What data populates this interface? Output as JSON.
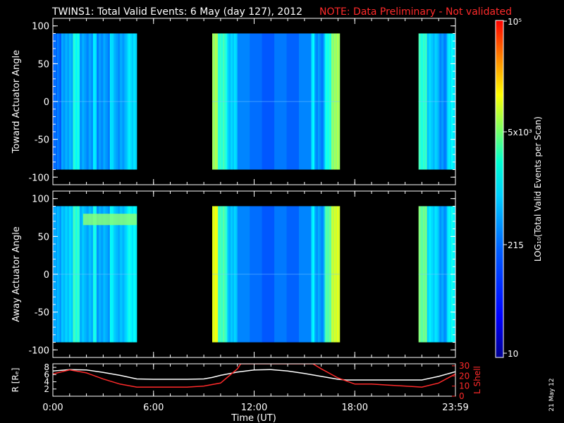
{
  "title": {
    "main": "TWINS1: Total Valid Events:  6 May (day 127), 2012",
    "note": "NOTE: Data Preliminary - Not validated"
  },
  "panels": [
    {
      "ylabel": "Toward Actuator Angle",
      "ylim": [
        -110,
        110
      ],
      "yticks": [
        "100",
        "50",
        "0",
        "-50",
        "-100"
      ]
    },
    {
      "ylabel": "Away Actuator Angle",
      "ylim": [
        -110,
        110
      ],
      "yticks": [
        "100",
        "50",
        "0",
        "-50",
        "-100"
      ]
    }
  ],
  "orbit": {
    "left_label": "R [Rₑ]",
    "left_ticks": [
      "8",
      "6",
      "4",
      "2"
    ],
    "right_label": "L Shell",
    "right_ticks": [
      "30",
      "20",
      "10",
      "0"
    ],
    "r_color": "#ffffff",
    "l_color": "#ff2a2a"
  },
  "xaxis": {
    "label": "Time (UT)",
    "ticks": [
      "0:00",
      "6:00",
      "12:00",
      "18:00",
      "23:59"
    ]
  },
  "colorbar": {
    "label": "LOG₁₀(Total Valid Events per Scan)",
    "ticks": [
      "10⁵",
      "5x10³",
      "215",
      "10"
    ]
  },
  "stamp": "21 May 12",
  "colors": {
    "background": "#000000",
    "axes": "#ffffff",
    "note": "#ff2a2a"
  },
  "chart_data": {
    "type": "heatmap",
    "x_unit": "hours UT",
    "angle_range": [
      -90,
      90
    ],
    "colorscale": [
      "#00008f",
      "#0033ff",
      "#00a0ff",
      "#00ffff",
      "#80ff80",
      "#ffff00",
      "#ff8000",
      "#ff0000"
    ],
    "data_intervals": [
      [
        0,
        5.0
      ],
      [
        9.5,
        17.1
      ],
      [
        21.8,
        24.0
      ]
    ],
    "toward_bands": [
      {
        "start": 0.0,
        "end": 0.5,
        "level": 0.22
      },
      {
        "start": 0.5,
        "end": 1.2,
        "level": 0.3
      },
      {
        "start": 1.2,
        "end": 1.6,
        "level": 0.45
      },
      {
        "start": 1.6,
        "end": 2.4,
        "level": 0.28
      },
      {
        "start": 2.4,
        "end": 2.6,
        "level": 0.4
      },
      {
        "start": 2.6,
        "end": 3.4,
        "level": 0.27
      },
      {
        "start": 3.4,
        "end": 3.6,
        "level": 0.4
      },
      {
        "start": 3.6,
        "end": 4.4,
        "level": 0.29
      },
      {
        "start": 4.4,
        "end": 5.0,
        "level": 0.38
      },
      {
        "start": 9.5,
        "end": 9.85,
        "level": 0.6
      },
      {
        "start": 9.85,
        "end": 10.4,
        "level": 0.48
      },
      {
        "start": 10.4,
        "end": 11.0,
        "level": 0.36
      },
      {
        "start": 11.0,
        "end": 15.4,
        "level": 0.22
      },
      {
        "start": 15.4,
        "end": 15.6,
        "level": 0.4
      },
      {
        "start": 15.6,
        "end": 16.2,
        "level": 0.26
      },
      {
        "start": 16.2,
        "end": 16.6,
        "level": 0.45
      },
      {
        "start": 16.6,
        "end": 17.1,
        "level": 0.6
      },
      {
        "start": 21.8,
        "end": 22.3,
        "level": 0.48
      },
      {
        "start": 22.3,
        "end": 23.0,
        "level": 0.35
      },
      {
        "start": 23.0,
        "end": 23.5,
        "level": 0.26
      },
      {
        "start": 23.5,
        "end": 24.0,
        "level": 0.4
      }
    ],
    "away_bands": [
      {
        "start": 0.0,
        "end": 0.5,
        "level": 0.3
      },
      {
        "start": 0.5,
        "end": 1.2,
        "level": 0.35
      },
      {
        "start": 1.2,
        "end": 1.6,
        "level": 0.48
      },
      {
        "start": 1.6,
        "end": 2.4,
        "level": 0.32
      },
      {
        "start": 2.4,
        "end": 2.6,
        "level": 0.45
      },
      {
        "start": 2.6,
        "end": 3.4,
        "level": 0.3
      },
      {
        "start": 3.4,
        "end": 3.6,
        "level": 0.44
      },
      {
        "start": 3.6,
        "end": 4.4,
        "level": 0.33
      },
      {
        "start": 4.4,
        "end": 5.0,
        "level": 0.42
      },
      {
        "start": 9.5,
        "end": 9.85,
        "level": 0.68
      },
      {
        "start": 9.85,
        "end": 10.4,
        "level": 0.5
      },
      {
        "start": 10.4,
        "end": 11.0,
        "level": 0.34
      },
      {
        "start": 11.0,
        "end": 15.4,
        "level": 0.22
      },
      {
        "start": 15.4,
        "end": 15.6,
        "level": 0.4
      },
      {
        "start": 15.6,
        "end": 16.2,
        "level": 0.28
      },
      {
        "start": 16.2,
        "end": 16.6,
        "level": 0.52
      },
      {
        "start": 16.6,
        "end": 17.1,
        "level": 0.66
      },
      {
        "start": 21.8,
        "end": 22.3,
        "level": 0.55
      },
      {
        "start": 22.3,
        "end": 23.0,
        "level": 0.38
      },
      {
        "start": 23.0,
        "end": 23.5,
        "level": 0.28
      },
      {
        "start": 23.5,
        "end": 24.0,
        "level": 0.42
      }
    ],
    "away_patch": {
      "start": 1.8,
      "end": 5.0,
      "angle_min": 65,
      "angle_max": 80,
      "level": 0.58
    },
    "r_series": {
      "x": [
        0,
        1,
        2,
        3,
        4,
        5,
        6,
        7,
        8,
        9,
        9.5,
        10,
        11,
        12,
        13,
        14,
        15,
        16,
        17,
        17.5,
        18,
        19,
        20,
        21,
        22,
        23,
        24
      ],
      "y": [
        7.0,
        7.4,
        7.3,
        6.6,
        5.8,
        4.8,
        4.7,
        4.7,
        4.7,
        4.8,
        5.2,
        5.8,
        6.7,
        7.3,
        7.4,
        7.0,
        6.3,
        5.5,
        4.7,
        4.5,
        4.5,
        4.5,
        4.5,
        4.5,
        4.5,
        5.5,
        6.8
      ]
    },
    "l_series": {
      "x": [
        0,
        1,
        2,
        3,
        4,
        5,
        6,
        7,
        8,
        9,
        10,
        11,
        11.2,
        15.5,
        16,
        17,
        18,
        19,
        20,
        21,
        22,
        23,
        24
      ],
      "y": [
        22,
        26,
        23,
        17,
        12,
        9,
        9,
        9,
        9,
        10,
        13,
        27,
        32,
        32,
        27,
        18,
        12,
        12,
        11,
        10,
        9,
        13,
        22
      ]
    },
    "r_range": [
      0,
      9
    ],
    "l_range": [
      0,
      32
    ],
    "x_range": [
      0,
      24
    ]
  }
}
